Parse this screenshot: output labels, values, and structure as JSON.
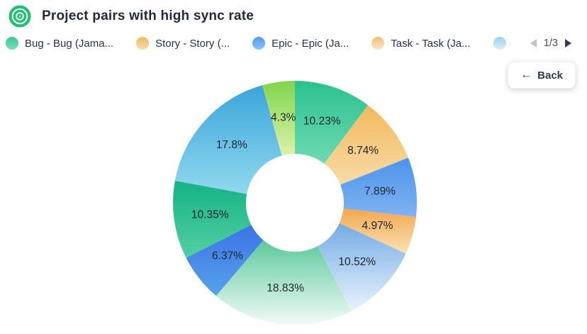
{
  "header": {
    "title": "Project pairs with high sync rate",
    "icon": "target-icon",
    "icon_color": "#21BF73"
  },
  "legend": {
    "items": [
      {
        "label": "Bug - Bug (Jama...",
        "color": "#35C893",
        "color_light": "#79DFBB"
      },
      {
        "label": "Story - Story (...",
        "color": "#F1B95E",
        "color_light": "#F8DCA9"
      },
      {
        "label": "Epic - Epic (Ja...",
        "color": "#4F9BF0",
        "color_light": "#8FC1F6"
      },
      {
        "label": "Task - Task (Ja...",
        "color": "#F4BD74",
        "color_light": "#FAE8CC"
      },
      {
        "label": "",
        "color": "#9ED0F0",
        "color_light": "#DCEFFB"
      }
    ],
    "pagination": {
      "label": "1/3",
      "prev_icon": "left-triangle-icon",
      "next_icon": "right-triangle-icon"
    }
  },
  "back_button": {
    "label": "Back",
    "icon": "arrow-left-icon",
    "icon_glyph": "←"
  },
  "chart_data": {
    "type": "pie",
    "subtype": "donut",
    "title": "Project pairs with high sync rate",
    "unit": "%",
    "start_angle_deg": 0,
    "direction": "clockwise",
    "legend_position": "top",
    "slices": [
      {
        "label": "10.23%",
        "value": 10.23,
        "color": "#2AC18E",
        "color_light": "#6FDAB4"
      },
      {
        "label": "8.74%",
        "value": 8.74,
        "color": "#F2B95D",
        "color_light": "#F8DCA8"
      },
      {
        "label": "7.89%",
        "value": 7.89,
        "color": "#4C93EA",
        "color_light": "#7FB3F2"
      },
      {
        "label": "4.97%",
        "value": 4.97,
        "color": "#F1A74F",
        "color_light": "#FBE2B5"
      },
      {
        "label": "10.52%",
        "value": 10.52,
        "color": "#74ABE4",
        "color_light": "#E9F3FC"
      },
      {
        "label": "18.83%",
        "value": 18.83,
        "color": "#5BC99B",
        "color_light": "#F3FBF7"
      },
      {
        "label": "6.37%",
        "value": 6.37,
        "color": "#3C72E7",
        "color_light": "#57A3EA"
      },
      {
        "label": "10.35%",
        "value": 10.35,
        "color": "#15B284",
        "color_light": "#52CFA4"
      },
      {
        "label": "17.8%",
        "value": 17.8,
        "color": "#3BA5D9",
        "color_light": "#90D8EF"
      },
      {
        "label": "4.3%",
        "value": 4.3,
        "color": "#80D44D",
        "color_light": "#DCF3A9"
      }
    ]
  }
}
